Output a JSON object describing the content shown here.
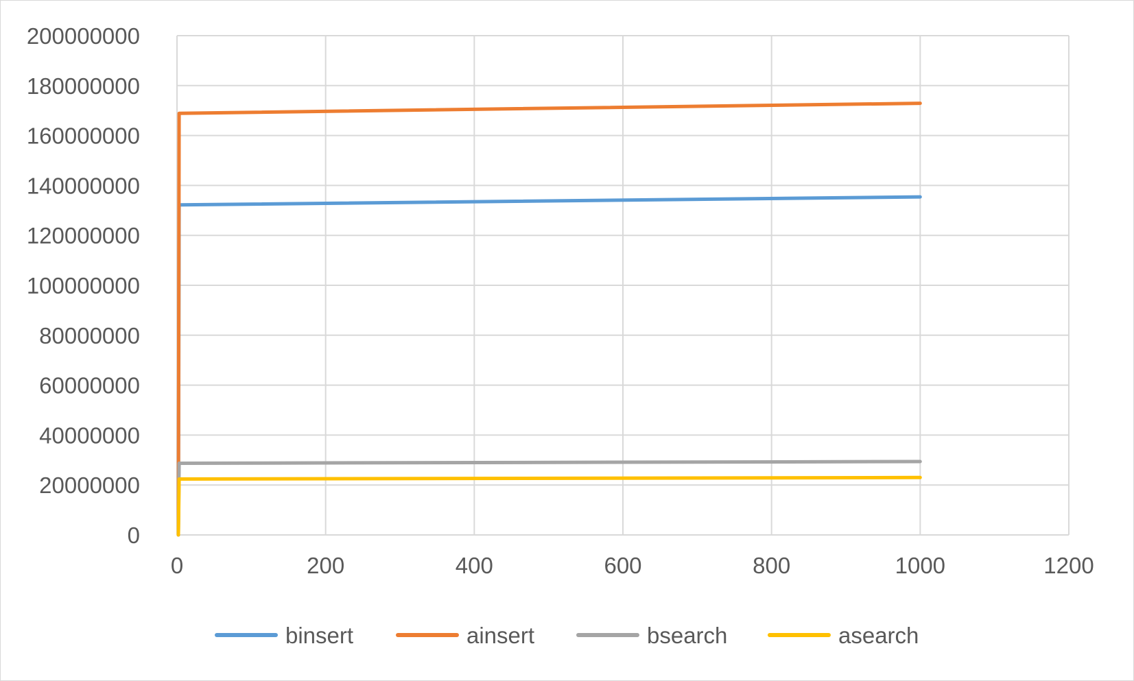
{
  "chart_data": {
    "type": "line",
    "title": "",
    "xlabel": "",
    "ylabel": "",
    "xlim": [
      0,
      1200
    ],
    "ylim": [
      0,
      200000000
    ],
    "x_ticks": [
      "0",
      "200",
      "400",
      "600",
      "800",
      "1000",
      "1200"
    ],
    "y_ticks": [
      "0",
      "20000000",
      "40000000",
      "60000000",
      "80000000",
      "100000000",
      "120000000",
      "140000000",
      "160000000",
      "180000000",
      "200000000"
    ],
    "grid": true,
    "legend_position": "bottom",
    "series": [
      {
        "name": "binsert",
        "color": "#5b9bd5",
        "x": [
          0,
          1,
          1000
        ],
        "y": [
          0,
          132200000,
          135400000
        ]
      },
      {
        "name": "ainsert",
        "color": "#ed7d31",
        "x": [
          0,
          1,
          1000
        ],
        "y": [
          0,
          168900000,
          172900000
        ]
      },
      {
        "name": "bsearch",
        "color": "#a5a5a5",
        "x": [
          0,
          1,
          1000
        ],
        "y": [
          0,
          28700000,
          29400000
        ]
      },
      {
        "name": "asearch",
        "color": "#ffc000",
        "x": [
          0,
          1,
          1000
        ],
        "y": [
          0,
          22400000,
          23000000
        ]
      }
    ]
  }
}
